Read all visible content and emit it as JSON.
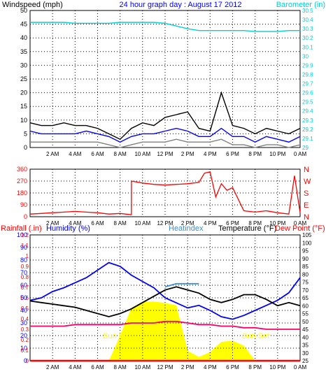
{
  "chart_data": [
    {
      "type": "line",
      "header": {
        "left": "Windspeed (mph)",
        "center": "24 hour graph day : August 17 2012",
        "right": "Barometer (in)"
      },
      "x_ticks": [
        "2 AM",
        "4 AM",
        "6 AM",
        "8 AM",
        "10 AM",
        "12 PM",
        "2 PM",
        "4 PM",
        "6 PM",
        "8 PM",
        "10 PM",
        "0 AM"
      ],
      "y_left": {
        "min": 0,
        "max": 50,
        "ticks": [
          0,
          5,
          10,
          15,
          20,
          25,
          30,
          35,
          40,
          45,
          50
        ]
      },
      "y_right": {
        "min": 29.0,
        "max": 30.5,
        "ticks": [
          "29",
          "29.1",
          "29.2",
          "29.3",
          "29.4",
          "29.5",
          "29.6",
          "29.7",
          "29.8",
          "29.9",
          "30",
          "30.1",
          "30.2",
          "30.3",
          "30.4",
          "30.5"
        ]
      },
      "x_hours": [
        0,
        1,
        2,
        3,
        4,
        5,
        6,
        7,
        8,
        9,
        10,
        11,
        12,
        13,
        14,
        15,
        16,
        17,
        18,
        19,
        20,
        21,
        22,
        23,
        24
      ],
      "series": [
        {
          "name": "Barometer",
          "color": "#00d0d0",
          "axis": "right",
          "values": [
            30.37,
            30.37,
            30.37,
            30.37,
            30.36,
            30.36,
            30.36,
            30.36,
            30.37,
            30.37,
            30.37,
            30.37,
            30.36,
            30.33,
            30.3,
            30.28,
            30.28,
            30.28,
            30.28,
            30.28,
            30.27,
            30.27,
            30.27,
            30.28,
            30.28
          ]
        },
        {
          "name": "Windspeed high",
          "color": "#000000",
          "axis": "left",
          "values": [
            9,
            8,
            8,
            9,
            8,
            8,
            7,
            5,
            3,
            7,
            9,
            8,
            11,
            12,
            13,
            7,
            6,
            20,
            8,
            7,
            5,
            7,
            6,
            5,
            7
          ]
        },
        {
          "name": "Windspeed average",
          "color": "#0000ff",
          "axis": "left",
          "values": [
            6,
            5,
            5,
            5,
            5,
            6,
            5,
            4,
            2,
            4,
            5,
            5,
            6,
            7,
            6,
            4,
            4,
            7,
            4,
            4,
            2,
            4,
            3,
            2,
            4
          ]
        },
        {
          "name": "Windspeed low",
          "color": "#808080",
          "axis": "left",
          "values": [
            2,
            2,
            2,
            2,
            2,
            2,
            2,
            1,
            0,
            1,
            2,
            2,
            2,
            3,
            2,
            2,
            2,
            3,
            1,
            1,
            0,
            1,
            1,
            0,
            1
          ]
        }
      ]
    },
    {
      "type": "line",
      "x_ticks": [
        "2 AM",
        "4 AM",
        "6 AM",
        "8 AM",
        "10 AM",
        "12 PM",
        "2 PM",
        "4 PM",
        "6 PM",
        "8 PM",
        "10 PM",
        "0 AM"
      ],
      "y_left": {
        "min": 0,
        "max": 360,
        "ticks": [
          "0",
          "90",
          "180",
          "270",
          "360"
        ]
      },
      "y_right_labels": [
        "N",
        "W",
        "S",
        "E",
        "N"
      ],
      "x_hours": [
        0,
        1,
        2,
        3,
        4,
        5,
        6,
        7,
        8,
        9,
        9.01,
        10,
        11,
        12,
        13,
        14,
        15,
        15.5,
        16,
        16.5,
        17,
        17.5,
        18,
        19,
        20,
        21,
        22,
        23,
        23.5,
        24
      ],
      "series": [
        {
          "name": "Wind direction",
          "color": "#ff0000",
          "values": [
            20,
            25,
            30,
            35,
            40,
            35,
            30,
            20,
            25,
            15,
            270,
            255,
            245,
            240,
            245,
            250,
            260,
            330,
            340,
            150,
            250,
            200,
            220,
            45,
            35,
            45,
            30,
            20,
            310,
            30
          ]
        }
      ]
    },
    {
      "type": "line",
      "header": {
        "rainfall": "Rainfall (.in)",
        "humidity": "Humidity (%)",
        "heatindex": "Heatindex",
        "temperature": "Temperature (°F)",
        "dewpoint": "Dew Point (°F)"
      },
      "x_ticks": [
        "2 AM",
        "4 AM",
        "6 AM",
        "8 AM",
        "10 AM",
        "12 PM",
        "2 PM",
        "4 PM",
        "6 PM",
        "8 PM",
        "10 PM",
        "0 AM"
      ],
      "y_left_humidity": {
        "min": 0,
        "max": 100,
        "ticks": [
          "0",
          "10",
          "20",
          "30",
          "40",
          "50",
          "60",
          "70",
          "80",
          "90",
          "100"
        ]
      },
      "y_left_rain": {
        "min": 0,
        "max": 1.2,
        "ticks": [
          "0",
          "0.1",
          "0.2",
          "0.3",
          "0.4",
          "0.5",
          "0.6",
          "0.7",
          "0.8",
          "0.9",
          "1",
          "1.1",
          "1.2"
        ]
      },
      "y_right_temp": {
        "min": 25,
        "max": 105,
        "ticks": [
          "25",
          "30",
          "35",
          "40",
          "45",
          "50",
          "55",
          "60",
          "65",
          "70",
          "75",
          "80",
          "85",
          "90",
          "95",
          "100",
          "105"
        ]
      },
      "annotations": {
        "sunrise": "Sun Rise",
        "sunset": "Sun Set"
      },
      "x_hours": [
        0,
        1,
        2,
        3,
        4,
        5,
        6,
        7,
        8,
        9,
        10,
        11,
        12,
        13,
        14,
        15,
        16,
        17,
        18,
        19,
        20,
        21,
        22,
        23,
        24
      ],
      "series": [
        {
          "name": "Humidity",
          "color": "#0000ff",
          "axis": "humidity",
          "values": [
            48,
            50,
            55,
            58,
            62,
            66,
            72,
            78,
            75,
            68,
            63,
            58,
            50,
            46,
            42,
            44,
            40,
            35,
            33,
            36,
            40,
            44,
            48,
            54,
            66
          ]
        },
        {
          "name": "Temperature",
          "color": "#000000",
          "axis": "temp",
          "values": [
            63,
            62,
            61,
            60,
            59,
            57,
            55,
            53,
            55,
            58,
            62,
            66,
            70,
            72,
            70,
            68,
            64,
            62,
            64,
            67,
            67,
            64,
            60,
            62,
            60
          ]
        },
        {
          "name": "Heatindex",
          "color": "#3a8fd6",
          "axis": "temp",
          "values": [
            null,
            null,
            null,
            null,
            null,
            null,
            null,
            null,
            null,
            null,
            null,
            null,
            72,
            74,
            74,
            74,
            null,
            null,
            null,
            null,
            null,
            null,
            null,
            null,
            null
          ]
        },
        {
          "name": "Dew Point",
          "color": "#ff0066",
          "axis": "temp",
          "values": [
            47,
            47,
            47,
            47,
            48,
            48,
            48,
            48,
            48,
            49,
            49,
            49,
            50,
            50,
            49,
            48,
            48,
            47,
            47,
            46,
            46,
            45,
            45,
            45,
            45
          ]
        },
        {
          "name": "Solar",
          "color": "#ffff00",
          "axis": "humidity",
          "values": [
            0,
            0,
            0,
            0,
            0,
            0,
            0,
            0,
            20,
            42,
            47,
            47,
            46,
            44,
            8,
            3,
            7,
            15,
            16,
            12,
            0,
            0,
            0,
            0,
            0
          ]
        },
        {
          "name": "Rainfall",
          "color": "#ff0000",
          "axis": "rain",
          "values": [
            0,
            0,
            0,
            0,
            0,
            0,
            0,
            0,
            0,
            0,
            0,
            0,
            0,
            0,
            0,
            0,
            0,
            0,
            0,
            0,
            0,
            0,
            0,
            0,
            0
          ]
        }
      ]
    }
  ]
}
